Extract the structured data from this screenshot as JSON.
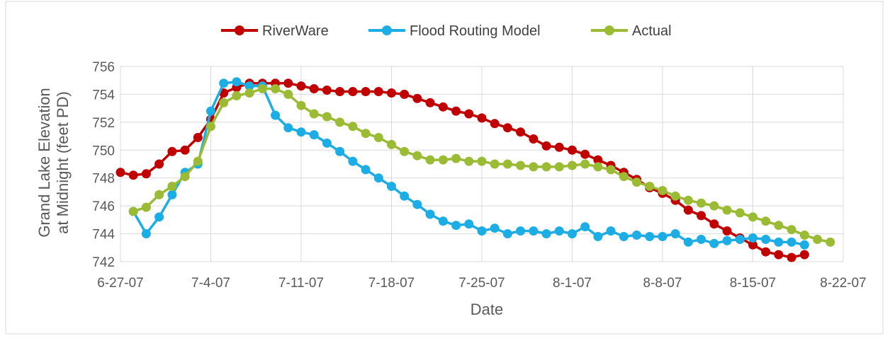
{
  "chart_data": {
    "type": "line",
    "xlabel": "Date",
    "ylabel_lines": [
      "Grand Lake Elevation",
      "at Midnight (feet PD)"
    ],
    "x_ticks": [
      "6-27-07",
      "7-4-07",
      "7-11-07",
      "7-18-07",
      "7-25-07",
      "8-1-07",
      "8-8-07",
      "8-15-07",
      "8-22-07"
    ],
    "x_range_days": [
      0,
      56
    ],
    "ylim": [
      742,
      756
    ],
    "y_ticks": [
      742,
      744,
      746,
      748,
      750,
      752,
      754,
      756
    ],
    "grid": true,
    "legend_position": "top",
    "series": [
      {
        "name": "RiverWare",
        "color": "#C00000",
        "x": [
          0,
          1,
          2,
          3,
          4,
          5,
          6,
          7,
          8,
          9,
          10,
          11,
          12,
          13,
          14,
          15,
          16,
          17,
          18,
          19,
          20,
          21,
          22,
          23,
          24,
          25,
          26,
          27,
          28,
          29,
          30,
          31,
          32,
          33,
          34,
          35,
          36,
          37,
          38,
          39,
          40,
          41,
          42,
          43,
          44,
          45,
          46,
          47,
          48,
          49,
          50,
          51,
          52,
          53,
          54,
          55,
          56
        ],
        "y": [
          748.4,
          748.2,
          748.3,
          749.0,
          749.9,
          750.0,
          750.9,
          752.2,
          754.1,
          754.5,
          754.8,
          754.8,
          754.8,
          754.8,
          754.6,
          754.4,
          754.3,
          754.2,
          754.2,
          754.2,
          754.2,
          754.1,
          754.0,
          753.7,
          753.4,
          753.1,
          752.8,
          752.6,
          752.3,
          751.9,
          751.6,
          751.3,
          750.8,
          750.3,
          750.2,
          750.0,
          749.7,
          749.3,
          748.9,
          748.4,
          747.9,
          747.3,
          746.9,
          746.4,
          745.7,
          745.3,
          744.7,
          744.2,
          743.7,
          743.2,
          742.7,
          742.5,
          742.3,
          742.5,
          null,
          null,
          null
        ]
      },
      {
        "name": "Flood Routing Model",
        "color": "#1CADE4",
        "x": [
          1,
          2,
          3,
          4,
          5,
          6,
          7,
          8,
          9,
          10,
          11,
          12,
          13,
          14,
          15,
          16,
          17,
          18,
          19,
          20,
          21,
          22,
          23,
          24,
          25,
          26,
          27,
          28,
          29,
          30,
          31,
          32,
          33,
          34,
          35,
          36,
          37,
          38,
          39,
          40,
          41,
          42,
          43,
          44,
          45,
          46,
          47,
          48,
          49,
          50,
          51,
          52,
          53
        ],
        "y": [
          745.6,
          744.0,
          745.2,
          746.8,
          748.4,
          749.0,
          752.8,
          754.8,
          754.9,
          754.6,
          754.6,
          752.5,
          751.6,
          751.3,
          751.1,
          750.5,
          749.9,
          749.2,
          748.6,
          748.0,
          747.4,
          746.7,
          746.1,
          745.4,
          744.9,
          744.6,
          744.7,
          744.2,
          744.4,
          744.0,
          744.2,
          744.2,
          744.0,
          744.2,
          744.0,
          744.5,
          743.8,
          744.2,
          743.8,
          743.9,
          743.8,
          743.8,
          744.0,
          743.4,
          743.6,
          743.3,
          743.5,
          743.6,
          743.7,
          743.6,
          743.4,
          743.4,
          743.2
        ]
      },
      {
        "name": "Actual",
        "color": "#9BBB34",
        "x": [
          1,
          2,
          3,
          4,
          5,
          6,
          7,
          8,
          9,
          10,
          11,
          12,
          13,
          14,
          15,
          16,
          17,
          18,
          19,
          20,
          21,
          22,
          23,
          24,
          25,
          26,
          27,
          28,
          29,
          30,
          31,
          32,
          33,
          34,
          35,
          36,
          37,
          38,
          39,
          40,
          41,
          42,
          43,
          44,
          45,
          46,
          47,
          48,
          49,
          50,
          51,
          52,
          53,
          54,
          55
        ],
        "y": [
          745.6,
          745.9,
          746.8,
          747.4,
          748.1,
          749.2,
          751.7,
          753.4,
          753.9,
          754.1,
          754.4,
          754.4,
          754.0,
          753.2,
          752.6,
          752.4,
          752.0,
          751.7,
          751.2,
          750.9,
          750.4,
          749.9,
          749.6,
          749.3,
          749.3,
          749.4,
          749.2,
          749.2,
          749.0,
          749.0,
          748.9,
          748.8,
          748.8,
          748.8,
          748.9,
          749.0,
          748.8,
          748.6,
          748.1,
          747.7,
          747.4,
          747.1,
          746.7,
          746.4,
          746.2,
          746.0,
          745.7,
          745.5,
          745.2,
          744.9,
          744.6,
          744.3,
          743.9,
          743.6,
          743.4
        ]
      }
    ]
  }
}
